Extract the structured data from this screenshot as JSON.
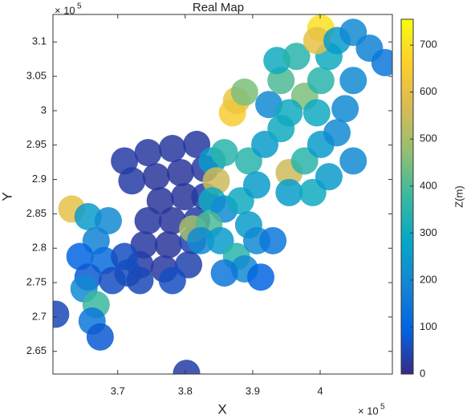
{
  "chart_data": {
    "type": "scatter",
    "title": "Real Map",
    "x_label": "X",
    "y_label": "Y",
    "colorbar_label": "Z(m)",
    "x_scale_label": "× 10",
    "x_scale_exponent": "5",
    "y_scale_label": "× 10",
    "y_scale_exponent": "5",
    "colormap": "parula",
    "xlim": [
      3.604,
      4.107
    ],
    "ylim": [
      2.617,
      3.14
    ],
    "xticks": [
      3.7,
      3.8,
      3.9,
      4
    ],
    "yticks": [
      2.65,
      2.7,
      2.75,
      2.8,
      2.85,
      2.9,
      2.95,
      3,
      3.05,
      3.1
    ],
    "clim": [
      0,
      755
    ],
    "cticks": [
      0,
      100,
      200,
      300,
      400,
      500,
      600,
      700
    ],
    "x": [
      3.71,
      3.745,
      3.781,
      3.817,
      3.721,
      3.757,
      3.793,
      3.829,
      3.763,
      3.799,
      3.829,
      3.745,
      3.781,
      3.817,
      3.739,
      3.775,
      3.811,
      3.733,
      3.769,
      3.805,
      3.632,
      3.656,
      3.686,
      3.668,
      3.644,
      3.68,
      3.71,
      3.715,
      3.656,
      3.692,
      3.733,
      3.781,
      3.65,
      3.668,
      3.662,
      3.674,
      3.608,
      3.84,
      3.858,
      3.87,
      3.876,
      3.888,
      3.846,
      3.84,
      3.858,
      3.811,
      3.835,
      3.823,
      3.852,
      3.876,
      3.888,
      3.912,
      3.858,
      3.882,
      3.894,
      3.906,
      3.93,
      3.894,
      3.918,
      3.942,
      3.924,
      3.942,
      3.936,
      3.965,
      3.954,
      3.977,
      4.001,
      4.025,
      3.954,
      3.989,
      4.013,
      4.049,
      3.977,
      4.001,
      4.013,
      4.001,
      3.995,
      4.025,
      4.049,
      4.073,
      4.096,
      4.049,
      4.037,
      3.995,
      3.954,
      3.906,
      3.802
    ],
    "y": [
      2.927,
      2.939,
      2.945,
      2.951,
      2.898,
      2.904,
      2.91,
      2.916,
      2.869,
      2.875,
      2.875,
      2.84,
      2.84,
      2.84,
      2.805,
      2.805,
      2.811,
      2.776,
      2.77,
      2.776,
      2.857,
      2.846,
      2.84,
      2.811,
      2.788,
      2.782,
      2.788,
      2.764,
      2.758,
      2.753,
      2.753,
      2.753,
      2.741,
      2.718,
      2.694,
      2.671,
      2.704,
      2.927,
      2.939,
      2.997,
      3.015,
      3.027,
      2.898,
      2.869,
      2.857,
      2.828,
      2.834,
      2.811,
      2.811,
      2.788,
      2.77,
      2.758,
      2.764,
      2.869,
      2.834,
      2.811,
      2.811,
      2.927,
      2.951,
      2.974,
      3.009,
      3.044,
      3.073,
      3.079,
      2.91,
      2.927,
      2.951,
      2.968,
      2.881,
      2.881,
      2.904,
      2.927,
      3.021,
      3.044,
      3.079,
      3.12,
      3.102,
      3.102,
      3.114,
      3.091,
      3.07,
      3.044,
      3.003,
      2.997,
      2.997,
      2.892,
      2.618
    ],
    "z": [
      30,
      25,
      25,
      25,
      30,
      20,
      20,
      25,
      20,
      20,
      30,
      25,
      20,
      30,
      25,
      20,
      40,
      30,
      25,
      40,
      600,
      250,
      200,
      180,
      100,
      120,
      60,
      60,
      80,
      60,
      50,
      60,
      200,
      380,
      150,
      80,
      50,
      250,
      350,
      650,
      620,
      450,
      550,
      300,
      200,
      500,
      400,
      200,
      250,
      350,
      200,
      100,
      150,
      300,
      250,
      200,
      150,
      350,
      250,
      300,
      200,
      400,
      300,
      350,
      550,
      350,
      250,
      200,
      250,
      300,
      250,
      200,
      450,
      350,
      300,
      700,
      600,
      250,
      200,
      180,
      150,
      200,
      200,
      300,
      300,
      250,
      30
    ]
  }
}
